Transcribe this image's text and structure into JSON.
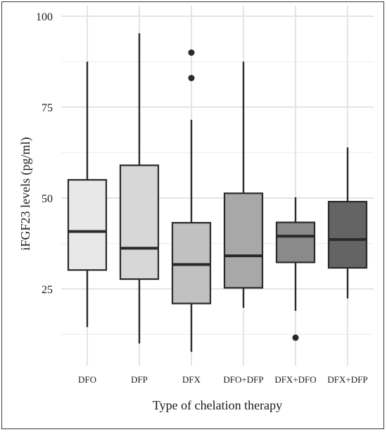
{
  "chart_data": {
    "type": "box",
    "title": "",
    "xlabel": "Type of chelation therapy",
    "ylabel": "iFGF23 levels (pg/ml)",
    "ylim": [
      0,
      100
    ],
    "y_ticks": [
      25,
      50,
      75,
      100
    ],
    "grid": true,
    "categories": [
      "DFO",
      "DFP",
      "DFX",
      "DFO+DFP",
      "DFX+DFO",
      "DFX+DFP"
    ],
    "series": [
      {
        "category": "DFO",
        "whisker_low": 14.5,
        "q1": 30.2,
        "median": 40.8,
        "q3": 55,
        "whisker_high": 87.5,
        "outliers": [],
        "fill": "#e8e8e8"
      },
      {
        "category": "DFP",
        "whisker_low": 10,
        "q1": 27.7,
        "median": 36.2,
        "q3": 59,
        "whisker_high": 95.3,
        "outliers": [],
        "fill": "#d7d7d7"
      },
      {
        "category": "DFX",
        "whisker_low": 7.7,
        "q1": 21,
        "median": 31.7,
        "q3": 43.2,
        "whisker_high": 71.5,
        "outliers": [
          83,
          90
        ],
        "fill": "#c1c1c1"
      },
      {
        "category": "DFO+DFP",
        "whisker_low": 19.8,
        "q1": 25.3,
        "median": 34.1,
        "q3": 51.3,
        "whisker_high": 87.5,
        "outliers": [],
        "fill": "#a8a8a8"
      },
      {
        "category": "DFX+DFO",
        "whisker_low": 19,
        "q1": 32.3,
        "median": 39.5,
        "q3": 43.3,
        "whisker_high": 50.2,
        "outliers": [
          11.6
        ],
        "fill": "#8a8a8a"
      },
      {
        "category": "DFX+DFP",
        "whisker_low": 22.4,
        "q1": 30.8,
        "median": 38.6,
        "q3": 49,
        "whisker_high": 63.9,
        "outliers": [],
        "fill": "#646464"
      }
    ],
    "colors": {
      "box_stroke": "#2a2a2a",
      "median": "#2a2a2a",
      "grid_major": "#e4e4e4",
      "grid_minor": "#f1f1f1"
    }
  }
}
